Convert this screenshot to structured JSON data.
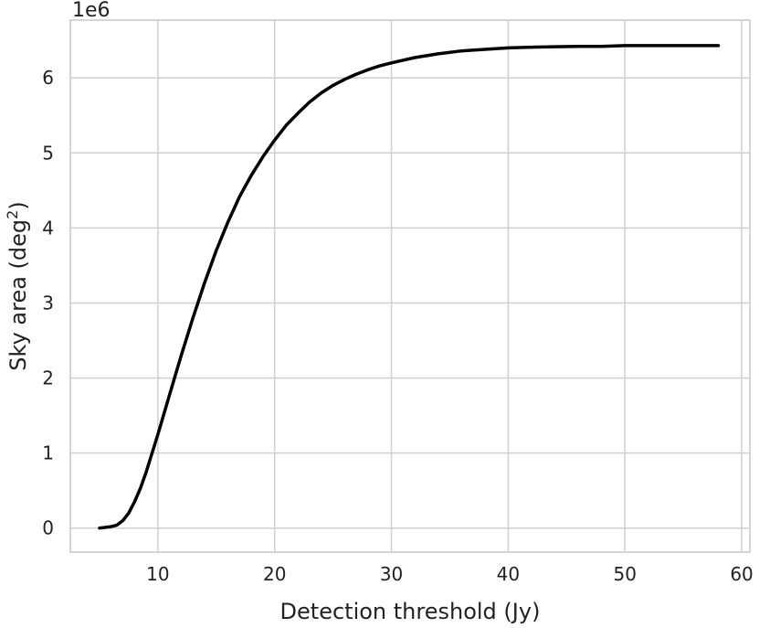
{
  "chart_data": {
    "type": "line",
    "title": "",
    "xlabel": "Detection threshold (Jy)",
    "ylabel": "Sky area (deg",
    "ylabel_superscript": "2",
    "ylabel_suffix": ")",
    "y_offset_text": "1e6",
    "xlim": [
      2.5,
      60.7
    ],
    "ylim": [
      -0.32,
      6.77
    ],
    "xticks": [
      10,
      20,
      30,
      40,
      50,
      60
    ],
    "xtick_labels": [
      "10",
      "20",
      "30",
      "40",
      "50",
      "60"
    ],
    "yticks": [
      0,
      1,
      2,
      3,
      4,
      5,
      6
    ],
    "ytick_labels": [
      "0",
      "1",
      "2",
      "3",
      "4",
      "5",
      "6"
    ],
    "grid": true,
    "legend": "none",
    "series": [
      {
        "color": "#000000",
        "x": [
          5.0,
          6.0,
          6.5,
          7.0,
          7.5,
          8.0,
          8.5,
          9.0,
          9.5,
          10.0,
          11.0,
          12.0,
          13.0,
          14.0,
          15.0,
          16.0,
          17.0,
          18.0,
          19.0,
          20.0,
          21.0,
          22.0,
          23.0,
          24.0,
          25.0,
          26.0,
          27.0,
          28.0,
          29.0,
          30.0,
          32.0,
          34.0,
          36.0,
          38.0,
          40.0,
          42.0,
          44.0,
          46.0,
          48.0,
          50.0,
          52.0,
          54.0,
          56.0,
          58.0
        ],
        "y": [
          0.0,
          0.02,
          0.04,
          0.1,
          0.2,
          0.35,
          0.53,
          0.75,
          1.0,
          1.25,
          1.78,
          2.3,
          2.8,
          3.27,
          3.7,
          4.08,
          4.42,
          4.7,
          4.95,
          5.17,
          5.37,
          5.53,
          5.68,
          5.8,
          5.9,
          5.98,
          6.05,
          6.11,
          6.16,
          6.2,
          6.27,
          6.32,
          6.36,
          6.38,
          6.4,
          6.41,
          6.415,
          6.42,
          6.42,
          6.43,
          6.43,
          6.43,
          6.43,
          6.43
        ]
      }
    ]
  }
}
